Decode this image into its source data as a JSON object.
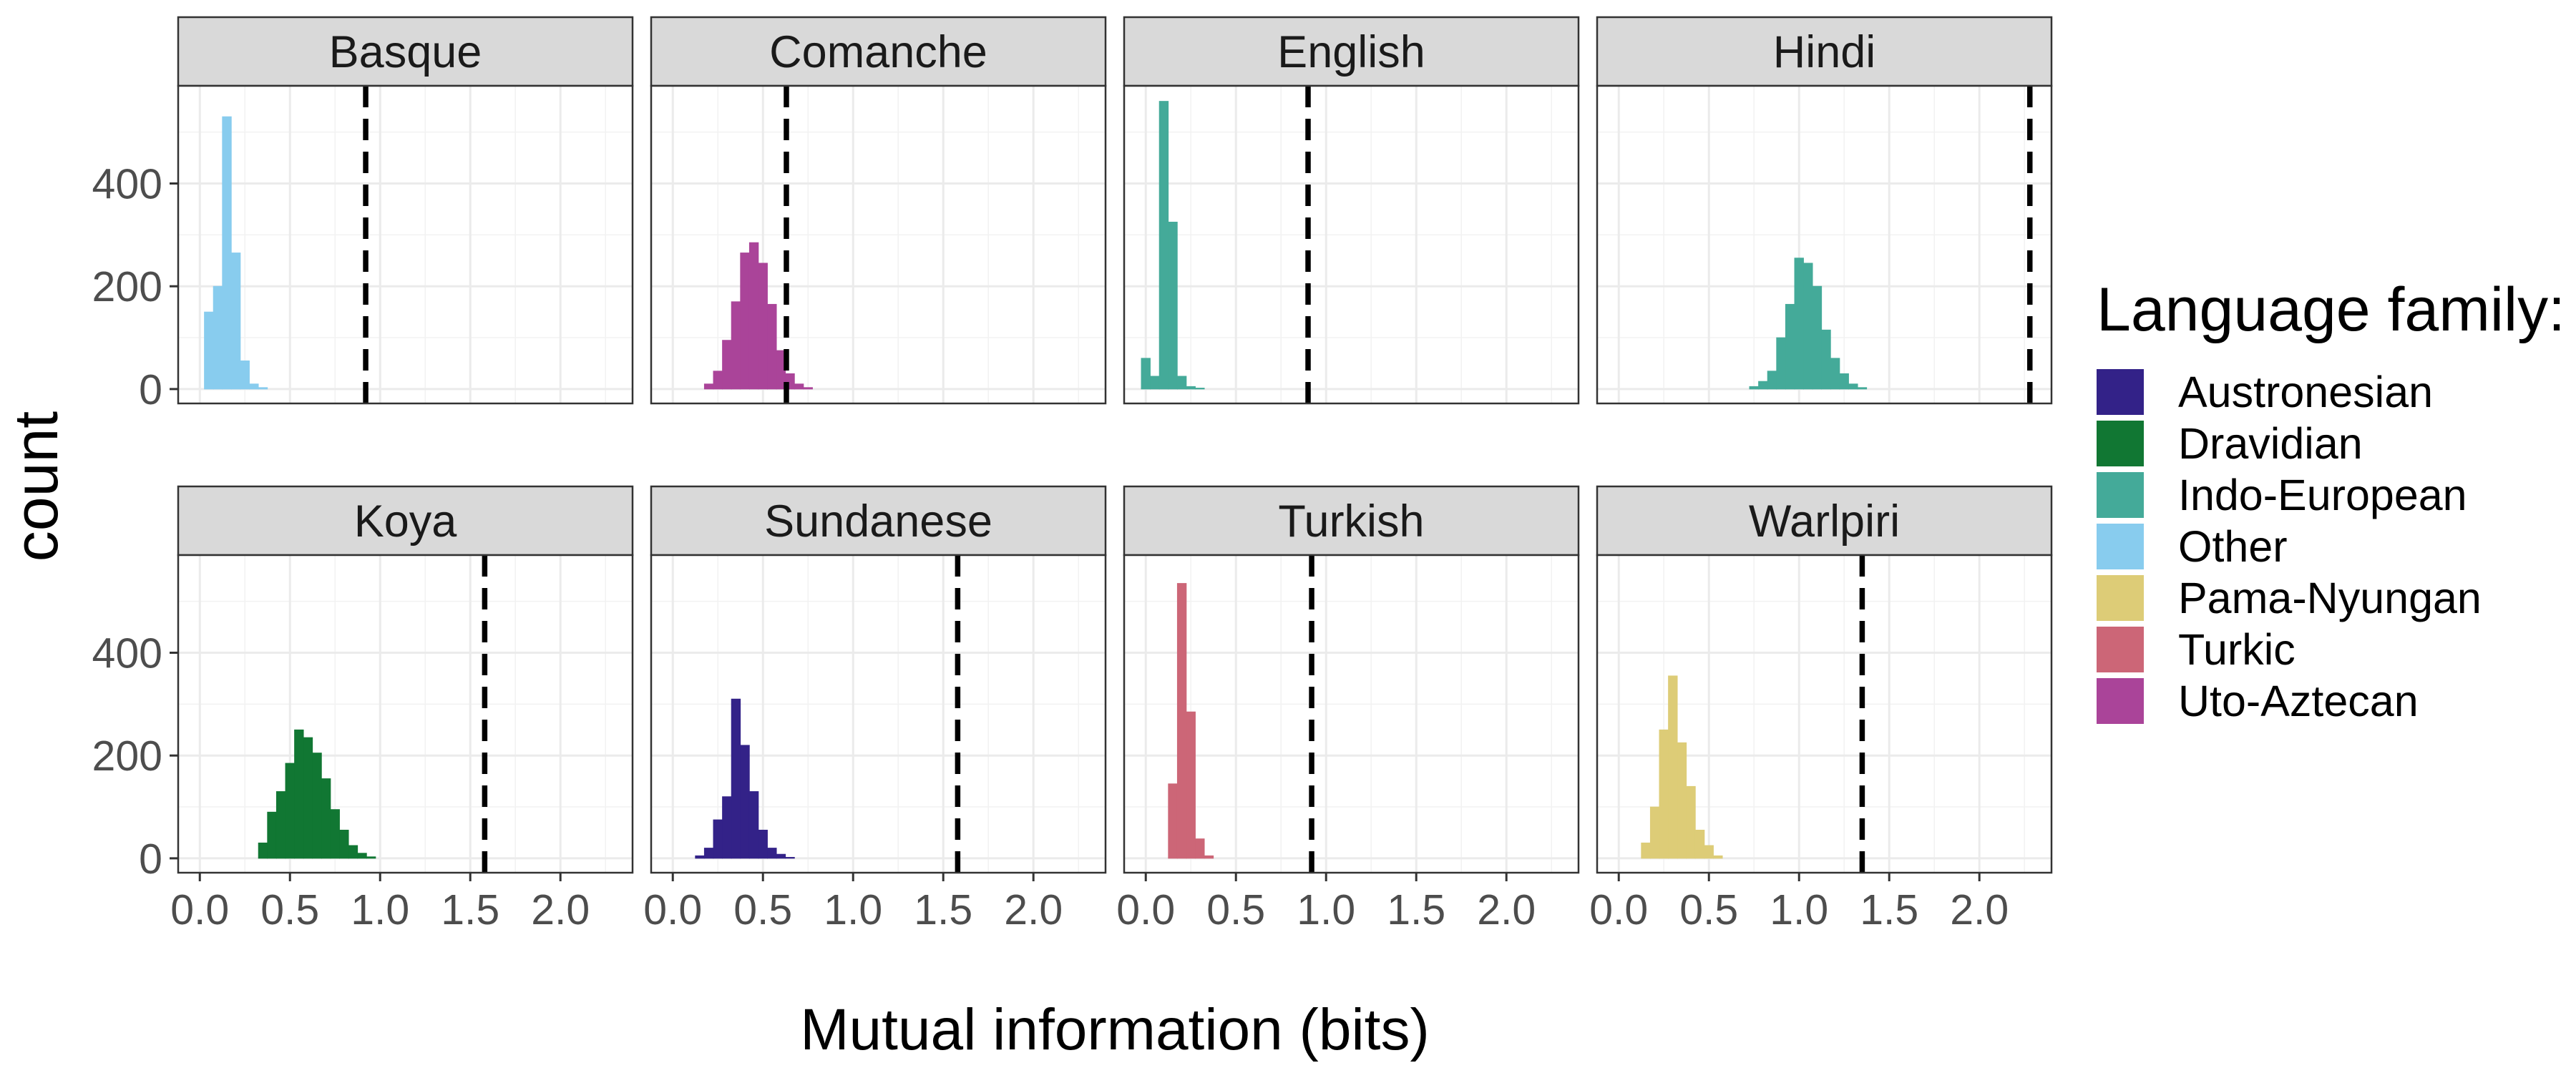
{
  "chart_data": {
    "type": "bar",
    "subtype": "faceted-histogram",
    "title": "",
    "xlabel": "Mutual information (bits)",
    "ylabel": "count",
    "xlim": [
      -0.12,
      2.4
    ],
    "ylim": [
      -28,
      590
    ],
    "x_ticks": [
      "0.0",
      "0.5",
      "1.0",
      "1.5",
      "2.0"
    ],
    "x_tick_values": [
      0,
      0.5,
      1.0,
      1.5,
      2.0
    ],
    "y_ticks": [
      "0",
      "200",
      "400"
    ],
    "y_tick_values": [
      0,
      200,
      400
    ],
    "bin_width": 0.05,
    "grid": true,
    "legend_position": "right",
    "legend": {
      "title": "Language family:",
      "items": [
        {
          "label": "Austronesian",
          "color": "#332288"
        },
        {
          "label": "Dravidian",
          "color": "#117733"
        },
        {
          "label": "Indo-European",
          "color": "#44AA99"
        },
        {
          "label": "Other",
          "color": "#88CCEE"
        },
        {
          "label": "Pama-Nyungan",
          "color": "#DDCC77"
        },
        {
          "label": "Turkic",
          "color": "#CC6677"
        },
        {
          "label": "Uto-Aztecan",
          "color": "#AA4499"
        }
      ]
    },
    "facets": [
      {
        "name": "Basque",
        "family": "Other",
        "reference_line": 0.92,
        "bins": [
          {
            "x": 0.05,
            "count": 150
          },
          {
            "x": 0.1,
            "count": 200
          },
          {
            "x": 0.15,
            "count": 530
          },
          {
            "x": 0.2,
            "count": 265
          },
          {
            "x": 0.25,
            "count": 55
          },
          {
            "x": 0.3,
            "count": 10
          },
          {
            "x": 0.35,
            "count": 3
          }
        ]
      },
      {
        "name": "Comanche",
        "family": "Uto-Aztecan",
        "reference_line": 0.63,
        "bins": [
          {
            "x": 0.2,
            "count": 10
          },
          {
            "x": 0.25,
            "count": 35
          },
          {
            "x": 0.3,
            "count": 95
          },
          {
            "x": 0.35,
            "count": 170
          },
          {
            "x": 0.4,
            "count": 265
          },
          {
            "x": 0.45,
            "count": 285
          },
          {
            "x": 0.5,
            "count": 245
          },
          {
            "x": 0.55,
            "count": 165
          },
          {
            "x": 0.6,
            "count": 75
          },
          {
            "x": 0.65,
            "count": 30
          },
          {
            "x": 0.7,
            "count": 10
          },
          {
            "x": 0.75,
            "count": 3
          }
        ]
      },
      {
        "name": "English",
        "family": "Indo-European",
        "reference_line": 0.9,
        "bins": [
          {
            "x": 0.0,
            "count": 60
          },
          {
            "x": 0.05,
            "count": 25
          },
          {
            "x": 0.1,
            "count": 560
          },
          {
            "x": 0.15,
            "count": 325
          },
          {
            "x": 0.2,
            "count": 25
          },
          {
            "x": 0.25,
            "count": 5
          },
          {
            "x": 0.3,
            "count": 2
          }
        ]
      },
      {
        "name": "Hindi",
        "family": "Indo-European",
        "reference_line": 2.28,
        "bins": [
          {
            "x": 0.75,
            "count": 5
          },
          {
            "x": 0.8,
            "count": 15
          },
          {
            "x": 0.85,
            "count": 35
          },
          {
            "x": 0.9,
            "count": 100
          },
          {
            "x": 0.95,
            "count": 165
          },
          {
            "x": 1.0,
            "count": 255
          },
          {
            "x": 1.05,
            "count": 245
          },
          {
            "x": 1.1,
            "count": 200
          },
          {
            "x": 1.15,
            "count": 115
          },
          {
            "x": 1.2,
            "count": 60
          },
          {
            "x": 1.25,
            "count": 30
          },
          {
            "x": 1.3,
            "count": 10
          },
          {
            "x": 1.35,
            "count": 3
          }
        ]
      },
      {
        "name": "Koya",
        "family": "Dravidian",
        "reference_line": 1.58,
        "bins": [
          {
            "x": 0.35,
            "count": 30
          },
          {
            "x": 0.4,
            "count": 90
          },
          {
            "x": 0.45,
            "count": 130
          },
          {
            "x": 0.5,
            "count": 185
          },
          {
            "x": 0.55,
            "count": 250
          },
          {
            "x": 0.6,
            "count": 235
          },
          {
            "x": 0.65,
            "count": 205
          },
          {
            "x": 0.7,
            "count": 155
          },
          {
            "x": 0.75,
            "count": 95
          },
          {
            "x": 0.8,
            "count": 55
          },
          {
            "x": 0.85,
            "count": 25
          },
          {
            "x": 0.9,
            "count": 10
          },
          {
            "x": 0.95,
            "count": 3
          }
        ]
      },
      {
        "name": "Sundanese",
        "family": "Austronesian",
        "reference_line": 1.58,
        "bins": [
          {
            "x": 0.15,
            "count": 5
          },
          {
            "x": 0.2,
            "count": 20
          },
          {
            "x": 0.25,
            "count": 75
          },
          {
            "x": 0.3,
            "count": 120
          },
          {
            "x": 0.35,
            "count": 310
          },
          {
            "x": 0.4,
            "count": 220
          },
          {
            "x": 0.45,
            "count": 130
          },
          {
            "x": 0.5,
            "count": 55
          },
          {
            "x": 0.55,
            "count": 20
          },
          {
            "x": 0.6,
            "count": 8
          },
          {
            "x": 0.65,
            "count": 2
          }
        ]
      },
      {
        "name": "Turkish",
        "family": "Turkic",
        "reference_line": 0.92,
        "bins": [
          {
            "x": 0.15,
            "count": 145
          },
          {
            "x": 0.2,
            "count": 535
          },
          {
            "x": 0.25,
            "count": 285
          },
          {
            "x": 0.3,
            "count": 38
          },
          {
            "x": 0.35,
            "count": 5
          }
        ]
      },
      {
        "name": "Warlpiri",
        "family": "Pama-Nyungan",
        "reference_line": 1.35,
        "bins": [
          {
            "x": 0.15,
            "count": 30
          },
          {
            "x": 0.2,
            "count": 100
          },
          {
            "x": 0.25,
            "count": 250
          },
          {
            "x": 0.3,
            "count": 355
          },
          {
            "x": 0.35,
            "count": 225
          },
          {
            "x": 0.4,
            "count": 140
          },
          {
            "x": 0.45,
            "count": 55
          },
          {
            "x": 0.5,
            "count": 25
          },
          {
            "x": 0.55,
            "count": 5
          }
        ]
      }
    ]
  }
}
